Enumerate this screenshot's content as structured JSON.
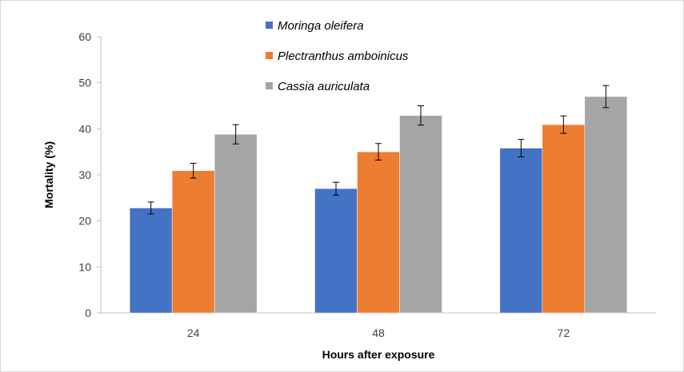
{
  "chart_data": {
    "type": "bar",
    "categories": [
      "24",
      "48",
      "72"
    ],
    "series": [
      {
        "name": "Moringa oleifera",
        "color": "#4472C4",
        "values": [
          22.8,
          27.0,
          35.8
        ],
        "errors": [
          1.3,
          1.4,
          1.9
        ]
      },
      {
        "name": "Plectranthus amboinicus",
        "color": "#ED7D31",
        "values": [
          30.9,
          35.0,
          40.9
        ],
        "errors": [
          1.6,
          1.8,
          1.9
        ]
      },
      {
        "name": "Cassia auriculata",
        "color": "#A5A5A5",
        "values": [
          38.8,
          42.9,
          47.0
        ],
        "errors": [
          2.1,
          2.1,
          2.4
        ]
      }
    ],
    "title": "",
    "xlabel": "Hours after exposure",
    "ylabel": "Mortality (%)",
    "ylim": [
      0,
      60
    ],
    "yticks": [
      0,
      10,
      20,
      30,
      40,
      50,
      60
    ],
    "grid": false,
    "legend_position": "top-center"
  }
}
